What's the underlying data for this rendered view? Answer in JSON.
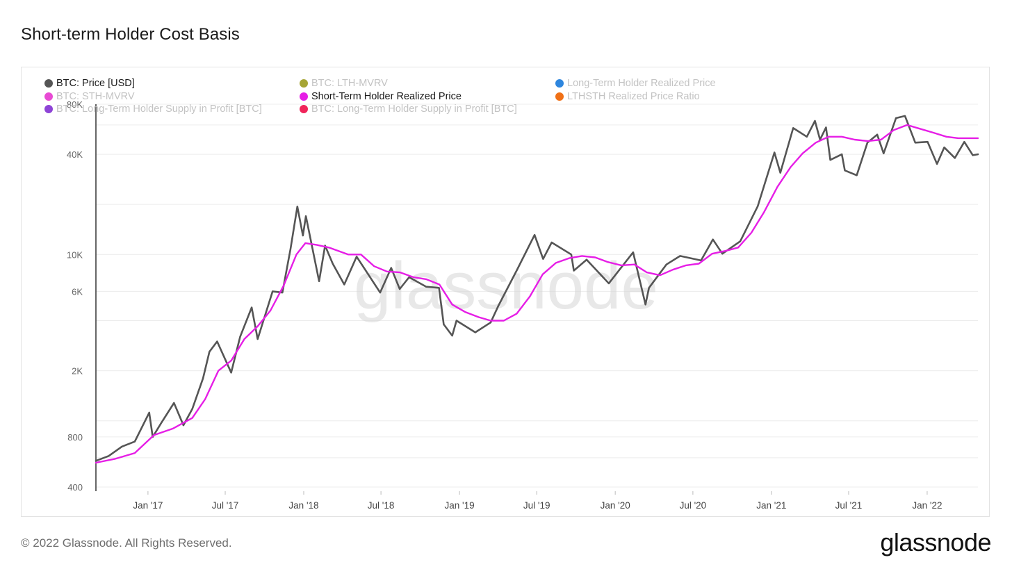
{
  "header": {
    "title": "Short-term Holder Cost Basis"
  },
  "legend": [
    {
      "label": "BTC: Price [USD]",
      "color": "#555555",
      "active": true
    },
    {
      "label": "BTC: LTH-MVRV",
      "color": "#a6a535",
      "active": false
    },
    {
      "label": "Long-Term Holder Realized Price",
      "color": "#2e86de",
      "active": false
    },
    {
      "label": "BTC: STH-MVRV",
      "color": "#e84ad4",
      "active": false
    },
    {
      "label": "Short-Term Holder Realized Price",
      "color": "#e61ee6",
      "active": true
    },
    {
      "label": "LTHSTH Realized Price Ratio",
      "color": "#f07016",
      "active": false
    },
    {
      "label": "BTC: Long-Term Holder Supply in Profit [BTC]",
      "color": "#8e44d6",
      "active": false
    },
    {
      "label": "BTC: Long-Term Holder Supply in Profit [BTC]",
      "color": "#f0245a",
      "active": false
    }
  ],
  "watermark": "glassnode",
  "footer": {
    "copyright": "© 2022 Glassnode. All Rights Reserved.",
    "brand": "glassnode"
  },
  "chart_data": {
    "type": "line",
    "title": "Short-term Holder Cost Basis",
    "xlabel": "",
    "ylabel": "",
    "y_scale": "log",
    "ylim": [
      400,
      80000
    ],
    "xlim": [
      "2016-09-01",
      "2022-04-30"
    ],
    "y_ticks": [
      {
        "value": 400,
        "label": "400"
      },
      {
        "value": 800,
        "label": "800"
      },
      {
        "value": 2000,
        "label": "2K"
      },
      {
        "value": 6000,
        "label": "6K"
      },
      {
        "value": 10000,
        "label": "10K"
      },
      {
        "value": 40000,
        "label": "40K"
      },
      {
        "value": 80000,
        "label": "80K"
      }
    ],
    "x_ticks": [
      {
        "date": "2017-01-01",
        "label": "Jan '17"
      },
      {
        "date": "2017-07-01",
        "label": "Jul '17"
      },
      {
        "date": "2018-01-01",
        "label": "Jan '18"
      },
      {
        "date": "2018-07-01",
        "label": "Jul '18"
      },
      {
        "date": "2019-01-01",
        "label": "Jan '19"
      },
      {
        "date": "2019-07-01",
        "label": "Jul '19"
      },
      {
        "date": "2020-01-01",
        "label": "Jan '20"
      },
      {
        "date": "2020-07-01",
        "label": "Jul '20"
      },
      {
        "date": "2021-01-01",
        "label": "Jan '21"
      },
      {
        "date": "2021-07-01",
        "label": "Jul '21"
      },
      {
        "date": "2022-01-01",
        "label": "Jan '22"
      }
    ],
    "series": [
      {
        "name": "BTC: Price [USD]",
        "color": "#555555",
        "points": [
          [
            "2016-09-01",
            575
          ],
          [
            "2016-10-01",
            615
          ],
          [
            "2016-11-01",
            700
          ],
          [
            "2016-12-01",
            750
          ],
          [
            "2017-01-04",
            1120
          ],
          [
            "2017-01-12",
            800
          ],
          [
            "2017-02-01",
            970
          ],
          [
            "2017-03-03",
            1280
          ],
          [
            "2017-03-25",
            940
          ],
          [
            "2017-04-15",
            1180
          ],
          [
            "2017-05-10",
            1800
          ],
          [
            "2017-05-25",
            2600
          ],
          [
            "2017-06-12",
            3000
          ],
          [
            "2017-07-15",
            1950
          ],
          [
            "2017-08-05",
            3200
          ],
          [
            "2017-09-01",
            4800
          ],
          [
            "2017-09-15",
            3100
          ],
          [
            "2017-10-20",
            6000
          ],
          [
            "2017-11-12",
            5900
          ],
          [
            "2017-12-01",
            10800
          ],
          [
            "2017-12-17",
            19400
          ],
          [
            "2017-12-30",
            13000
          ],
          [
            "2018-01-06",
            17000
          ],
          [
            "2018-02-06",
            6900
          ],
          [
            "2018-02-20",
            11300
          ],
          [
            "2018-03-10",
            8800
          ],
          [
            "2018-04-06",
            6600
          ],
          [
            "2018-05-05",
            9700
          ],
          [
            "2018-06-29",
            5900
          ],
          [
            "2018-07-25",
            8300
          ],
          [
            "2018-08-14",
            6200
          ],
          [
            "2018-09-05",
            7300
          ],
          [
            "2018-10-15",
            6400
          ],
          [
            "2018-11-14",
            6300
          ],
          [
            "2018-11-25",
            3800
          ],
          [
            "2018-12-15",
            3250
          ],
          [
            "2018-12-25",
            4000
          ],
          [
            "2019-02-07",
            3400
          ],
          [
            "2019-03-15",
            3900
          ],
          [
            "2019-04-02",
            4900
          ],
          [
            "2019-05-15",
            8000
          ],
          [
            "2019-06-26",
            13100
          ],
          [
            "2019-07-16",
            9400
          ],
          [
            "2019-08-05",
            11800
          ],
          [
            "2019-09-20",
            10000
          ],
          [
            "2019-09-26",
            8000
          ],
          [
            "2019-10-26",
            9300
          ],
          [
            "2019-12-17",
            6700
          ],
          [
            "2020-02-12",
            10300
          ],
          [
            "2020-03-12",
            5000
          ],
          [
            "2020-03-20",
            6300
          ],
          [
            "2020-04-30",
            8700
          ],
          [
            "2020-06-01",
            9800
          ],
          [
            "2020-07-20",
            9200
          ],
          [
            "2020-08-17",
            12300
          ],
          [
            "2020-09-08",
            10100
          ],
          [
            "2020-10-20",
            12000
          ],
          [
            "2020-11-30",
            19500
          ],
          [
            "2021-01-08",
            41000
          ],
          [
            "2021-01-22",
            31000
          ],
          [
            "2021-02-21",
            57500
          ],
          [
            "2021-03-25",
            51000
          ],
          [
            "2021-04-13",
            63500
          ],
          [
            "2021-04-25",
            49000
          ],
          [
            "2021-05-09",
            58000
          ],
          [
            "2021-05-19",
            37000
          ],
          [
            "2021-06-15",
            40000
          ],
          [
            "2021-06-22",
            32000
          ],
          [
            "2021-07-20",
            29900
          ],
          [
            "2021-08-14",
            47000
          ],
          [
            "2021-09-06",
            52500
          ],
          [
            "2021-09-21",
            40500
          ],
          [
            "2021-10-20",
            66000
          ],
          [
            "2021-11-10",
            68000
          ],
          [
            "2021-12-04",
            47000
          ],
          [
            "2022-01-02",
            47500
          ],
          [
            "2022-01-24",
            35000
          ],
          [
            "2022-02-10",
            44000
          ],
          [
            "2022-03-07",
            38000
          ],
          [
            "2022-03-29",
            47500
          ],
          [
            "2022-04-18",
            39500
          ],
          [
            "2022-04-30",
            40000
          ]
        ]
      },
      {
        "name": "Short-Term Holder Realized Price",
        "color": "#e61ee6",
        "points": [
          [
            "2016-09-01",
            560
          ],
          [
            "2016-10-15",
            590
          ],
          [
            "2016-12-01",
            640
          ],
          [
            "2017-01-15",
            820
          ],
          [
            "2017-03-01",
            900
          ],
          [
            "2017-04-15",
            1040
          ],
          [
            "2017-05-15",
            1350
          ],
          [
            "2017-06-15",
            2000
          ],
          [
            "2017-07-15",
            2300
          ],
          [
            "2017-08-15",
            3100
          ],
          [
            "2017-09-15",
            3700
          ],
          [
            "2017-10-15",
            4600
          ],
          [
            "2017-11-15",
            6500
          ],
          [
            "2017-12-15",
            10000
          ],
          [
            "2018-01-05",
            11700
          ],
          [
            "2018-02-01",
            11400
          ],
          [
            "2018-03-01",
            11000
          ],
          [
            "2018-04-15",
            10000
          ],
          [
            "2018-05-15",
            10000
          ],
          [
            "2018-06-15",
            8500
          ],
          [
            "2018-07-15",
            7900
          ],
          [
            "2018-08-15",
            7800
          ],
          [
            "2018-09-15",
            7300
          ],
          [
            "2018-10-15",
            7100
          ],
          [
            "2018-11-15",
            6600
          ],
          [
            "2018-12-15",
            5000
          ],
          [
            "2019-01-15",
            4500
          ],
          [
            "2019-02-15",
            4200
          ],
          [
            "2019-03-15",
            4000
          ],
          [
            "2019-04-15",
            4000
          ],
          [
            "2019-05-15",
            4400
          ],
          [
            "2019-06-15",
            5600
          ],
          [
            "2019-07-15",
            7600
          ],
          [
            "2019-08-15",
            8900
          ],
          [
            "2019-09-15",
            9500
          ],
          [
            "2019-10-15",
            9800
          ],
          [
            "2019-11-15",
            9600
          ],
          [
            "2019-12-15",
            9000
          ],
          [
            "2020-01-15",
            8600
          ],
          [
            "2020-02-15",
            8700
          ],
          [
            "2020-03-15",
            7800
          ],
          [
            "2020-04-15",
            7500
          ],
          [
            "2020-05-15",
            8100
          ],
          [
            "2020-06-15",
            8600
          ],
          [
            "2020-07-15",
            8800
          ],
          [
            "2020-08-15",
            10100
          ],
          [
            "2020-09-15",
            10500
          ],
          [
            "2020-10-15",
            11000
          ],
          [
            "2020-11-15",
            13500
          ],
          [
            "2020-12-15",
            18000
          ],
          [
            "2021-01-15",
            25500
          ],
          [
            "2021-02-15",
            33500
          ],
          [
            "2021-03-15",
            40500
          ],
          [
            "2021-04-15",
            47000
          ],
          [
            "2021-05-15",
            51000
          ],
          [
            "2021-06-15",
            51000
          ],
          [
            "2021-07-15",
            49000
          ],
          [
            "2021-08-15",
            48000
          ],
          [
            "2021-09-15",
            49000
          ],
          [
            "2021-10-15",
            56000
          ],
          [
            "2021-11-15",
            60000
          ],
          [
            "2021-12-15",
            57000
          ],
          [
            "2022-01-15",
            54000
          ],
          [
            "2022-02-15",
            51000
          ],
          [
            "2022-03-15",
            50000
          ],
          [
            "2022-04-30",
            50000
          ]
        ]
      }
    ]
  }
}
